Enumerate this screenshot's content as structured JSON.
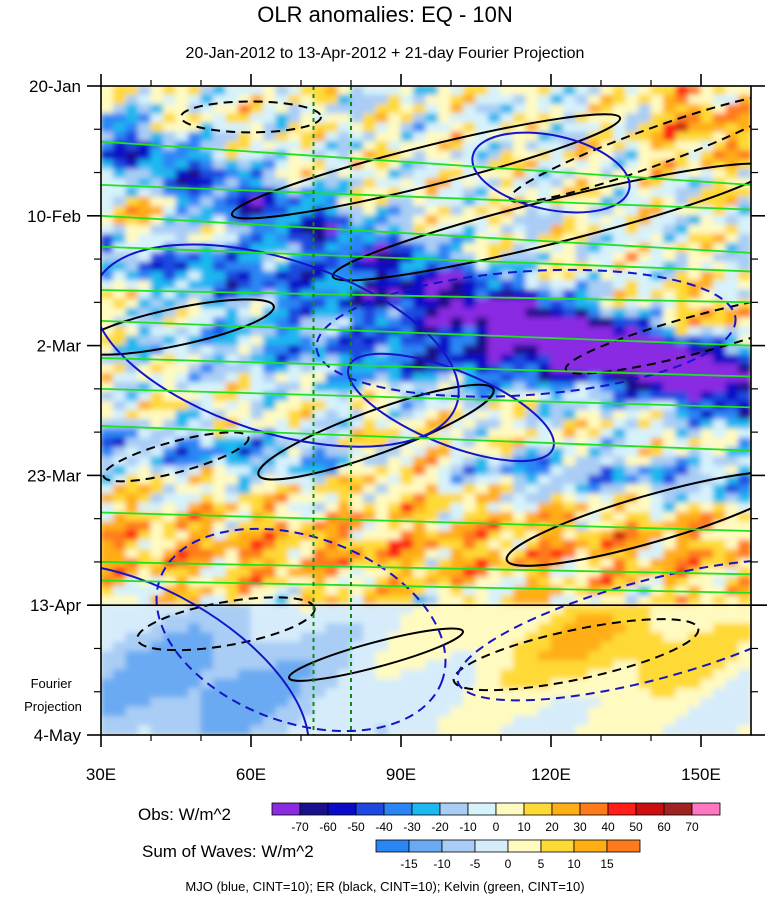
{
  "chart_data": {
    "type": "heatmap",
    "title": "OLR anomalies: EQ - 10N",
    "subtitle": "20-Jan-2012 to 13-Apr-2012 + 21-day Fourier Projection",
    "x_axis": {
      "range_deg_east": [
        30,
        160
      ],
      "ticks": [
        30,
        60,
        90,
        120,
        150
      ],
      "tick_labels": [
        "30E",
        "60E",
        "90E",
        "120E",
        "150E"
      ]
    },
    "y_axis": {
      "range_days_from_start": [
        0,
        105
      ],
      "ticks": [
        0,
        21,
        42,
        63,
        84,
        105
      ],
      "tick_labels": [
        "20-Jan",
        "10-Feb",
        "2-Mar",
        "23-Mar",
        "13-Apr",
        "4-May"
      ],
      "projection_start_day": 84,
      "projection_label_lines": [
        "Fourier",
        "Projection"
      ]
    },
    "reference_lines_deg_east": [
      72.5,
      80
    ],
    "obs_colorbar": {
      "title": "Obs: W/m^2",
      "levels": [
        -70,
        -60,
        -50,
        -40,
        -30,
        -20,
        -10,
        0,
        10,
        20,
        30,
        40,
        50,
        60,
        70
      ],
      "colors": [
        "#8a2be2",
        "#1a0f8c",
        "#0a0ac8",
        "#1f48e0",
        "#2b86f5",
        "#1cb8f0",
        "#a9cdf5",
        "#d6f2fb",
        "#fffac0",
        "#ffd936",
        "#ffae13",
        "#ff7a1a",
        "#ff1f16",
        "#cc0e0e",
        "#a02323",
        "#ff77c0"
      ]
    },
    "waves_colorbar": {
      "title": "Sum of Waves: W/m^2",
      "levels": [
        -15,
        -10,
        -5,
        0,
        5,
        10,
        15
      ],
      "colors": [
        "#2b86f5",
        "#6aaaf2",
        "#a9cdf5",
        "#d6ecfb",
        "#fffac0",
        "#ffd936",
        "#ffae13",
        "#ff7a1a"
      ]
    },
    "contours": [
      {
        "name": "MJO",
        "color": "blue",
        "cint": 10
      },
      {
        "name": "ER",
        "color": "black",
        "cint": 10
      },
      {
        "name": "Kelvin",
        "color": "green",
        "cint": 10
      }
    ],
    "footer": "MJO (blue, CINT=10); ER (black, CINT=10); Kelvin (green, CINT=10)"
  }
}
